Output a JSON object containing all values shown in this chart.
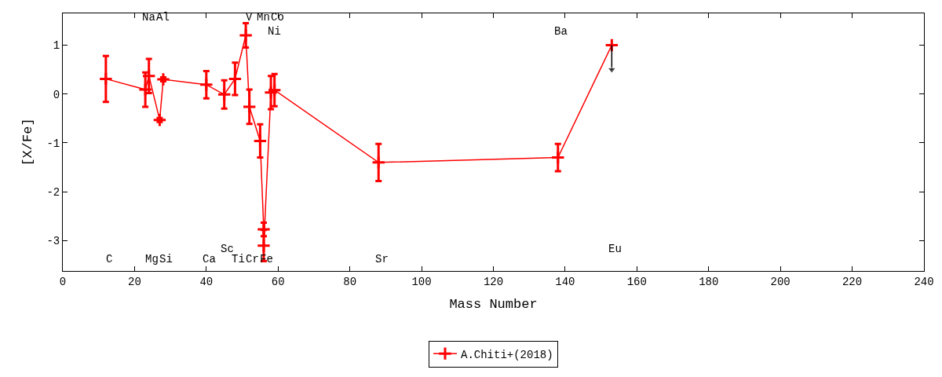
{
  "chart_data": {
    "type": "line",
    "xlabel": "Mass Number",
    "ylabel": "[X/Fe]",
    "xlim": [
      0,
      240
    ],
    "xticks": [
      0,
      20,
      40,
      60,
      80,
      100,
      120,
      140,
      160,
      180,
      200,
      220,
      240
    ],
    "ylim": [
      -3.62,
      1.65
    ],
    "yticks": [
      -3,
      -2,
      -1,
      0,
      1
    ],
    "grid": false,
    "legend": "bottom",
    "marker": "cross",
    "line_style": "solid",
    "series": [
      {
        "name": "A.Chiti+(2018)",
        "color": "#ff0000",
        "x": [
          12,
          23,
          24,
          27,
          28,
          40,
          45,
          48,
          51,
          52,
          55,
          56,
          56,
          58,
          59,
          88,
          138,
          153
        ],
        "values": [
          0.31,
          0.09,
          0.37,
          -0.53,
          0.3,
          0.19,
          -0.01,
          0.31,
          1.2,
          -0.26,
          -0.96,
          -2.77,
          -3.1,
          0.03,
          0.08,
          -1.4,
          -1.3,
          1.0
        ],
        "errors": [
          0.47,
          0.35,
          0.35,
          0.04,
          0.04,
          0.28,
          0.29,
          0.33,
          0.25,
          0.35,
          0.34,
          0.14,
          0.32,
          0.34,
          0.33,
          0.38,
          0.28,
          null
        ]
      },
      {
        "type": "line",
        "color": "#000000",
        "marker": "triangle",
        "x": [
          153,
          153
        ],
        "values": [
          1.0,
          0.5
        ]
      }
    ],
    "annotations": [
      "C",
      "Na",
      "Mg",
      "Al",
      "Si",
      "Ca",
      "Sc",
      "Ti",
      "V",
      "Cr",
      "Mn",
      "Fe",
      "Ni",
      "Co",
      "Sr",
      "Ba",
      "Eu"
    ]
  }
}
